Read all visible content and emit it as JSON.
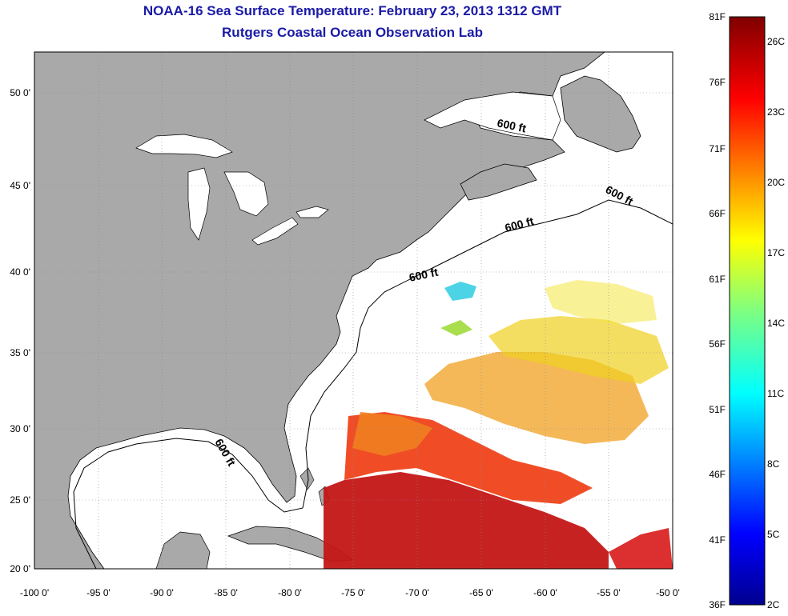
{
  "header": {
    "title": "NOAA-16 Sea Surface Temperature:  February 23, 2013 1312 GMT",
    "subtitle": "Rutgers Coastal Ocean Observation Lab"
  },
  "map": {
    "lon_range": [
      -100,
      -50
    ],
    "lat_range": [
      20,
      52
    ],
    "x_ticks": [
      "-100 0'",
      "-95 0'",
      "-90 0'",
      "-85 0'",
      "-80 0'",
      "-75 0'",
      "-70 0'",
      "-65 0'",
      "-60 0'",
      "-55 0'",
      "-50 0'"
    ],
    "y_ticks": [
      "20 0'",
      "25 0'",
      "30 0'",
      "35 0'",
      "40 0'",
      "45 0'",
      "50 0'"
    ],
    "grid": true,
    "land_color": "#a9a9a9",
    "contour_labels": [
      "600 ft",
      "600 ft",
      "600 ft",
      "600 ft",
      "600 ft"
    ]
  },
  "colorbar": {
    "fahrenheit_labels": [
      "81F",
      "76F",
      "71F",
      "66F",
      "61F",
      "56F",
      "51F",
      "46F",
      "41F",
      "36F"
    ],
    "celsius_labels": [
      "26C",
      "23C",
      "20C",
      "17C",
      "14C",
      "11C",
      "8C",
      "5C",
      "2C"
    ]
  }
}
